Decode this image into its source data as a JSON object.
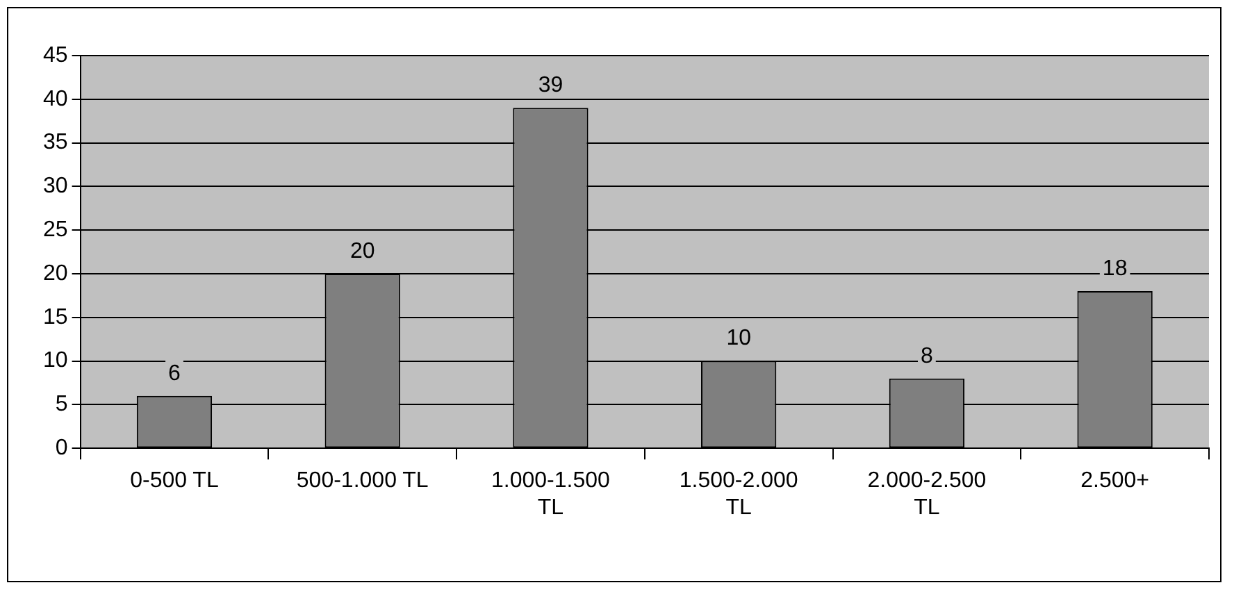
{
  "chart_data": {
    "type": "bar",
    "categories": [
      "0-500 TL",
      "500-1.000 TL",
      "1.000-1.500 TL",
      "1.500-2.000 TL",
      "2.000-2.500 TL",
      "2.500+"
    ],
    "values": [
      6,
      20,
      39,
      10,
      8,
      18
    ],
    "color": "#7f7f7f",
    "ylim": [
      0,
      45
    ],
    "yticks": [
      0,
      5,
      10,
      15,
      20,
      25,
      30,
      35,
      40,
      45
    ],
    "grid": "y",
    "data_labels": true,
    "legend": false
  }
}
